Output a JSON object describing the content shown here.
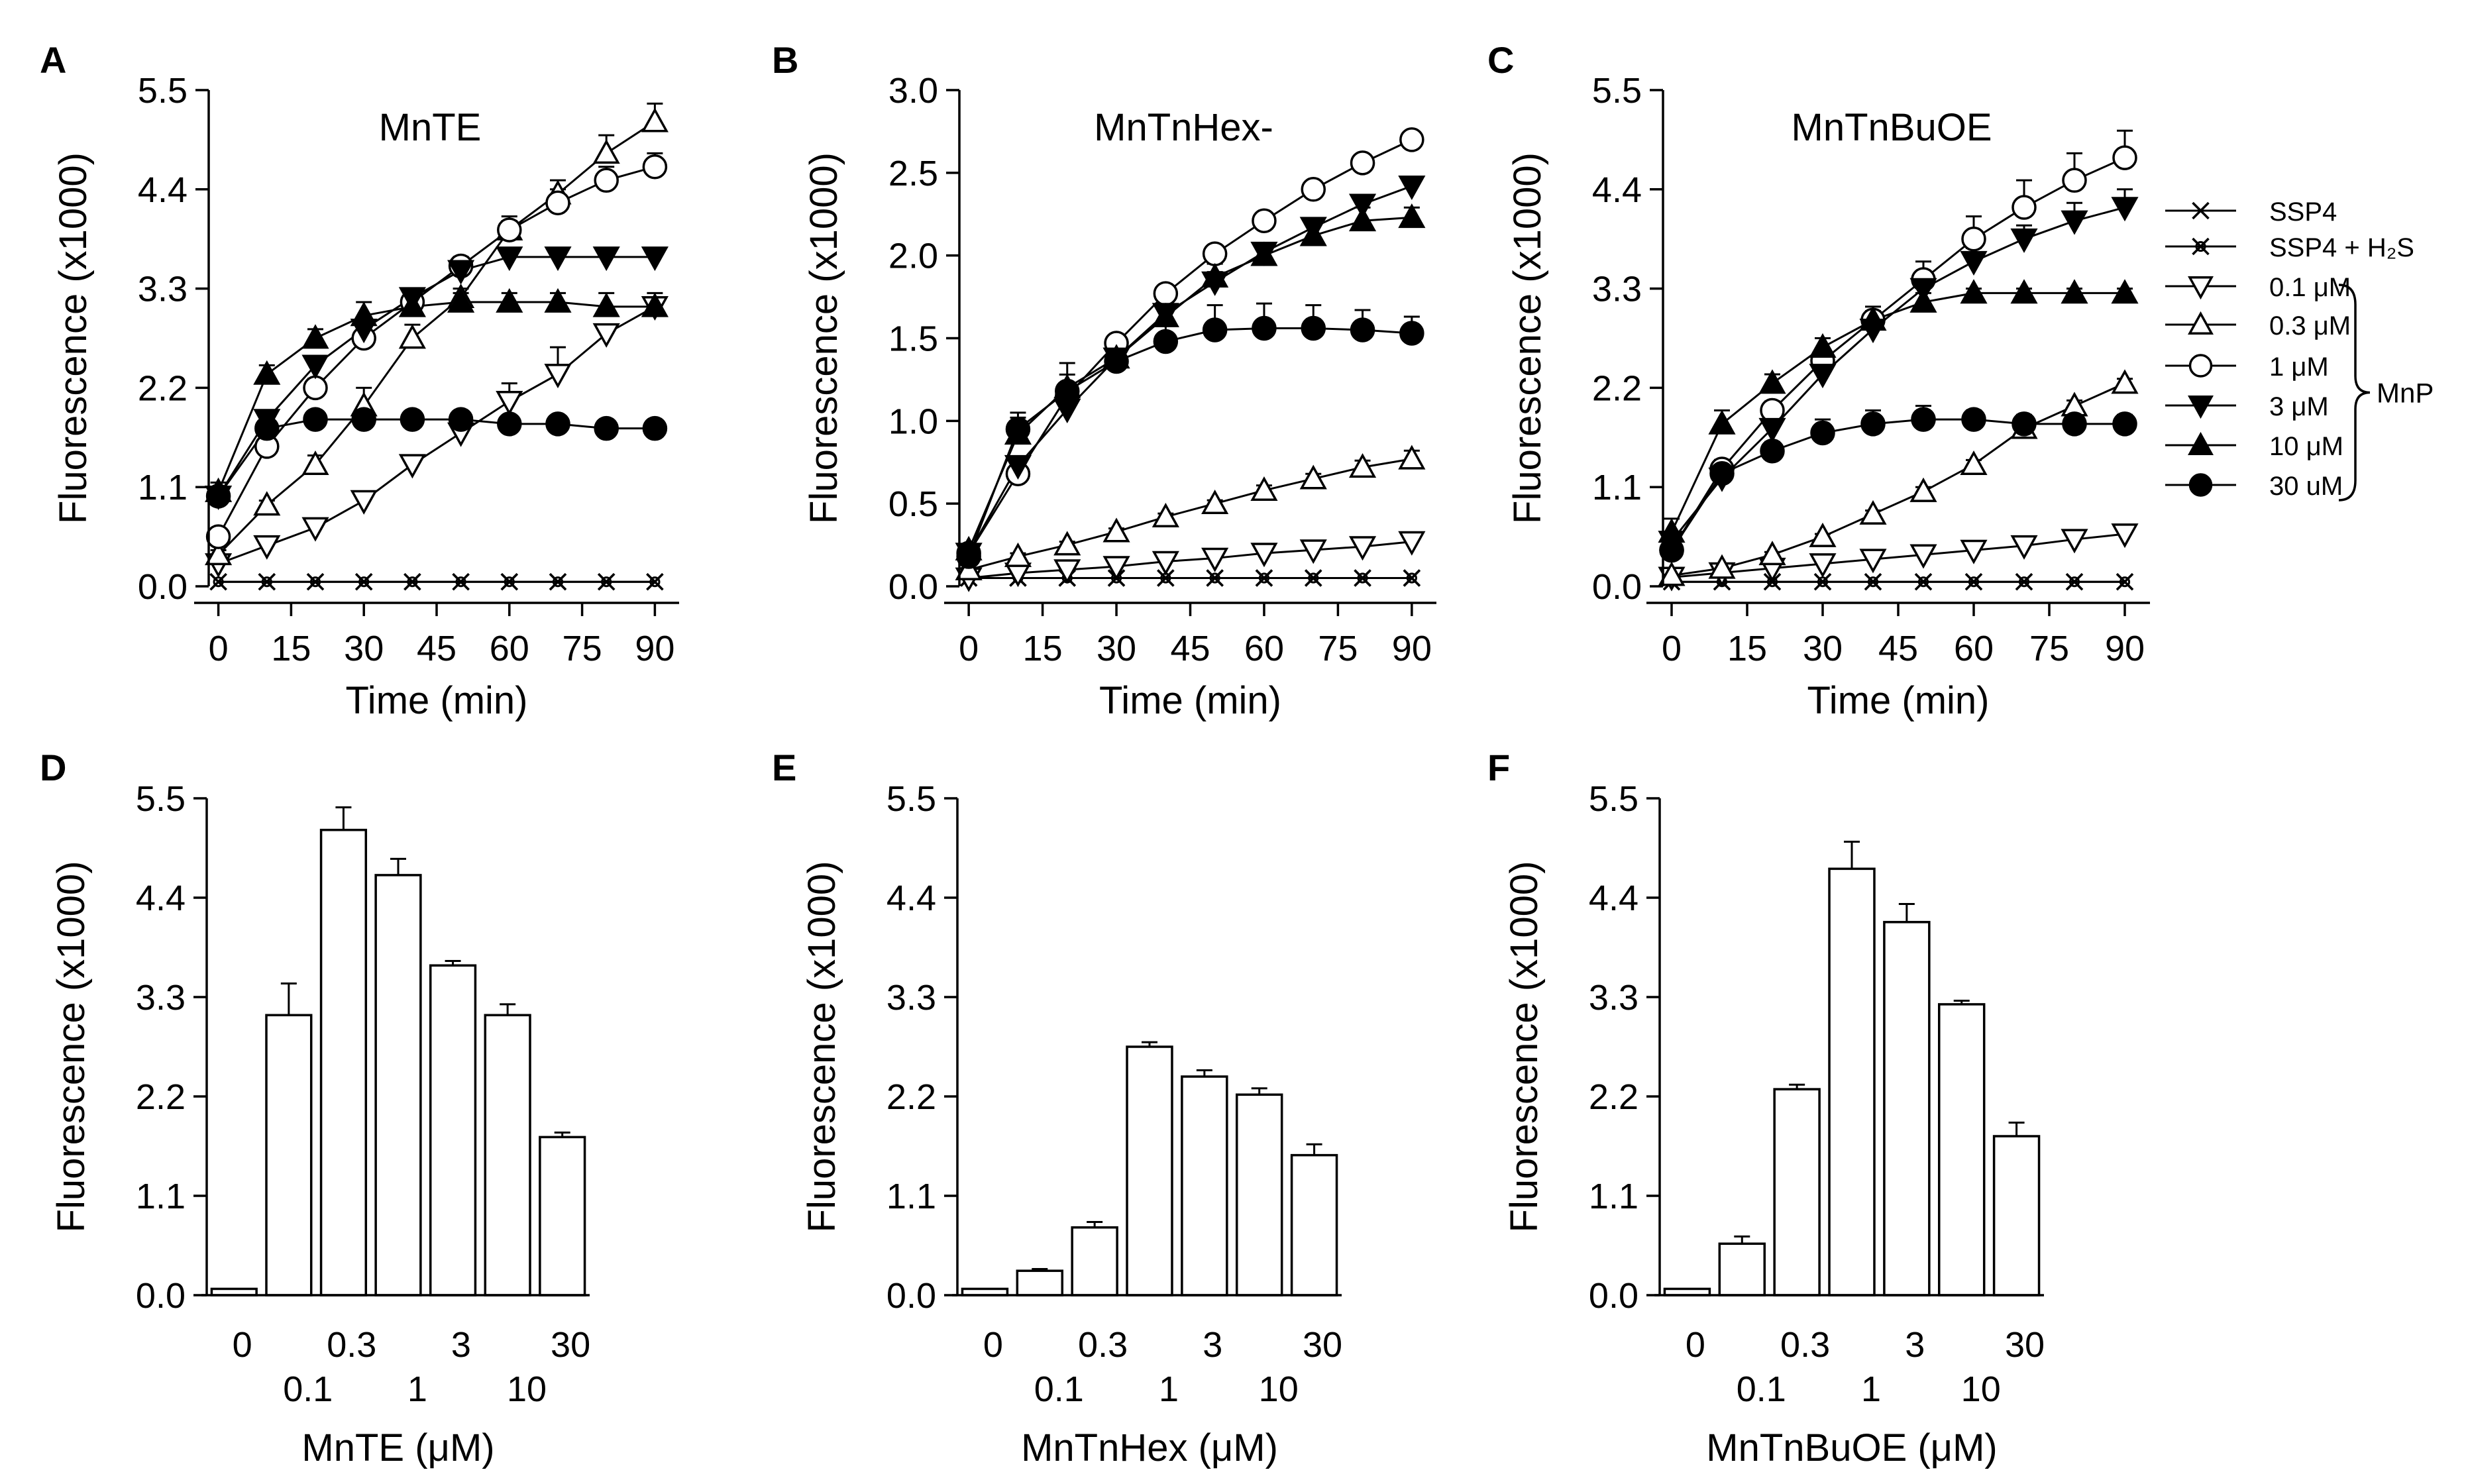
{
  "figure": {
    "background": "#ffffff",
    "line_color": "#000000"
  },
  "legend": {
    "entries": [
      {
        "key": "ssp4",
        "label": "SSP4",
        "marker": "x"
      },
      {
        "key": "ssp4h2s",
        "label": "SSP4 + H₂S",
        "marker": "xcircle"
      },
      {
        "key": "c01",
        "label": "0.1 μM",
        "marker": "tri-down-open"
      },
      {
        "key": "c03",
        "label": "0.3 μM",
        "marker": "tri-up-open"
      },
      {
        "key": "c1",
        "label": "1 μM",
        "marker": "circle-open"
      },
      {
        "key": "c3",
        "label": "3 μM",
        "marker": "tri-down-filled"
      },
      {
        "key": "c10",
        "label": "10 μM",
        "marker": "tri-up-filled"
      },
      {
        "key": "c30",
        "label": "30 uM",
        "marker": "circle-filled"
      }
    ],
    "group_label": "MnP"
  },
  "chart_data": [
    {
      "panel": "A",
      "type": "line",
      "title": "MnTE",
      "xlabel": "Time (min)",
      "ylabel": "Fluorescence (x1000)",
      "xlim": [
        -5,
        95
      ],
      "ylim": [
        0,
        5.5
      ],
      "xticks": [
        "0",
        "15",
        "30",
        "45",
        "60",
        "75",
        "90"
      ],
      "yticks": [
        "0.0",
        "1.1",
        "2.2",
        "3.3",
        "4.4",
        "5.5"
      ],
      "x": [
        0,
        10,
        20,
        30,
        40,
        50,
        60,
        70,
        80,
        90
      ],
      "series": [
        {
          "key": "ssp4",
          "name": "SSP4",
          "values": [
            0.05,
            0.05,
            0.05,
            0.05,
            0.05,
            0.05,
            0.05,
            0.05,
            0.05,
            0.05
          ]
        },
        {
          "key": "ssp4h2s",
          "name": "SSP4 + H2S",
          "values": [
            0.05,
            0.05,
            0.05,
            0.05,
            0.05,
            0.05,
            0.05,
            0.05,
            0.05,
            0.05
          ]
        },
        {
          "key": "c01",
          "name": "0.1 μM",
          "values": [
            0.25,
            0.45,
            0.65,
            0.95,
            1.35,
            1.7,
            2.05,
            2.35,
            2.8,
            3.1
          ],
          "errors": [
            0.02,
            0.05,
            0.05,
            0.1,
            0.1,
            0.1,
            0.2,
            0.3,
            0.1,
            0.1
          ]
        },
        {
          "key": "c03",
          "name": "0.3 μM",
          "values": [
            0.35,
            0.9,
            1.35,
            2.0,
            2.75,
            3.2,
            3.95,
            4.35,
            4.8,
            5.15
          ],
          "errors": [
            0.05,
            0.05,
            0.1,
            0.2,
            0.15,
            0.1,
            0.1,
            0.15,
            0.2,
            0.2
          ]
        },
        {
          "key": "c1",
          "name": "1 μM",
          "values": [
            0.55,
            1.55,
            2.2,
            2.75,
            3.15,
            3.55,
            3.95,
            4.25,
            4.5,
            4.65
          ],
          "errors": [
            0.05,
            0.05,
            0.1,
            0.1,
            0.1,
            0.1,
            0.15,
            0.15,
            0.15,
            0.15
          ]
        },
        {
          "key": "c3",
          "name": "3 μM",
          "values": [
            1.0,
            1.85,
            2.45,
            2.85,
            3.2,
            3.5,
            3.65,
            3.65,
            3.65,
            3.65
          ],
          "errors": [
            0.05,
            0.05,
            0.1,
            0.1,
            0.1,
            0.1,
            0.05,
            0.05,
            0.05,
            0.05
          ]
        },
        {
          "key": "c10",
          "name": "10 μM",
          "values": [
            1.05,
            2.35,
            2.75,
            3.0,
            3.1,
            3.15,
            3.15,
            3.15,
            3.1,
            3.1
          ],
          "errors": [
            0.1,
            0.1,
            0.1,
            0.15,
            0.1,
            0.1,
            0.1,
            0.1,
            0.15,
            0.15
          ]
        },
        {
          "key": "c30",
          "name": "30 uM",
          "values": [
            1.0,
            1.75,
            1.85,
            1.85,
            1.85,
            1.85,
            1.8,
            1.8,
            1.75,
            1.75
          ],
          "errors": [
            0.05,
            0.05,
            0.05,
            0.05,
            0.05,
            0.05,
            0.05,
            0.05,
            0.05,
            0.05
          ]
        }
      ]
    },
    {
      "panel": "B",
      "type": "line",
      "title": "MnTnHex-",
      "xlabel": "Time (min)",
      "ylabel": "Fluorescence (x1000)",
      "xlim": [
        -5,
        95
      ],
      "ylim": [
        0,
        3.0
      ],
      "xticks": [
        "0",
        "15",
        "30",
        "45",
        "60",
        "75",
        "90"
      ],
      "yticks": [
        "0.0",
        "0.5",
        "1.0",
        "1.5",
        "2.0",
        "2.5",
        "3.0"
      ],
      "x": [
        0,
        10,
        20,
        30,
        40,
        50,
        60,
        70,
        80,
        90
      ],
      "series": [
        {
          "key": "ssp4",
          "name": "SSP4",
          "values": [
            0.05,
            0.05,
            0.05,
            0.05,
            0.05,
            0.05,
            0.05,
            0.05,
            0.05,
            0.05
          ]
        },
        {
          "key": "ssp4h2s",
          "name": "SSP4 + H2S",
          "values": [
            0.05,
            0.05,
            0.05,
            0.05,
            0.05,
            0.05,
            0.05,
            0.05,
            0.05,
            0.05
          ]
        },
        {
          "key": "c01",
          "name": "0.1 μM",
          "values": [
            0.05,
            0.08,
            0.1,
            0.12,
            0.15,
            0.17,
            0.2,
            0.22,
            0.24,
            0.27
          ],
          "errors": [
            0.01,
            0.01,
            0.01,
            0.01,
            0.02,
            0.02,
            0.02,
            0.02,
            0.02,
            0.02
          ]
        },
        {
          "key": "c03",
          "name": "0.3 μM",
          "values": [
            0.1,
            0.18,
            0.25,
            0.33,
            0.42,
            0.5,
            0.58,
            0.65,
            0.72,
            0.77
          ],
          "errors": [
            0.01,
            0.02,
            0.02,
            0.02,
            0.02,
            0.02,
            0.03,
            0.03,
            0.04,
            0.05
          ]
        },
        {
          "key": "c1",
          "name": "1 μM",
          "values": [
            0.2,
            0.68,
            1.15,
            1.47,
            1.77,
            2.01,
            2.21,
            2.4,
            2.56,
            2.7
          ],
          "errors": [
            0.02,
            0.03,
            0.05,
            0.05,
            0.03,
            0.03,
            0.03,
            0.03,
            0.03,
            0.03
          ]
        },
        {
          "key": "c3",
          "name": "3 μM",
          "values": [
            0.2,
            0.73,
            1.07,
            1.38,
            1.65,
            1.84,
            2.02,
            2.17,
            2.31,
            2.42
          ],
          "errors": [
            0.02,
            0.03,
            0.05,
            0.05,
            0.05,
            0.06,
            0.05,
            0.05,
            0.05,
            0.05
          ]
        },
        {
          "key": "c10",
          "name": "10 μM",
          "values": [
            0.22,
            0.92,
            1.2,
            1.38,
            1.63,
            1.87,
            2.0,
            2.12,
            2.21,
            2.23
          ],
          "errors": [
            0.02,
            0.1,
            0.15,
            0.08,
            0.1,
            0.08,
            0.06,
            0.08,
            0.08,
            0.06
          ]
        },
        {
          "key": "c30",
          "name": "30 uM",
          "values": [
            0.18,
            0.95,
            1.18,
            1.36,
            1.48,
            1.55,
            1.56,
            1.56,
            1.55,
            1.53
          ],
          "errors": [
            0.02,
            0.1,
            0.1,
            0.1,
            0.12,
            0.15,
            0.15,
            0.14,
            0.12,
            0.1
          ]
        }
      ]
    },
    {
      "panel": "C",
      "type": "line",
      "title": "MnTnBuOE",
      "xlabel": "Time (min)",
      "ylabel": "Fluorescence (x1000)",
      "xlim": [
        -5,
        95
      ],
      "ylim": [
        0,
        5.5
      ],
      "xticks": [
        "0",
        "15",
        "30",
        "45",
        "60",
        "75",
        "90"
      ],
      "yticks": [
        "0.0",
        "1.1",
        "2.2",
        "3.3",
        "4.4",
        "5.5"
      ],
      "x": [
        0,
        10,
        20,
        30,
        40,
        50,
        60,
        70,
        80,
        90
      ],
      "series": [
        {
          "key": "ssp4",
          "name": "SSP4",
          "values": [
            0.05,
            0.05,
            0.05,
            0.05,
            0.05,
            0.05,
            0.05,
            0.05,
            0.05,
            0.05
          ]
        },
        {
          "key": "ssp4h2s",
          "name": "SSP4 + H2S",
          "values": [
            0.05,
            0.05,
            0.05,
            0.05,
            0.05,
            0.05,
            0.05,
            0.05,
            0.05,
            0.05
          ]
        },
        {
          "key": "c01",
          "name": "0.1 μM",
          "values": [
            0.1,
            0.15,
            0.2,
            0.25,
            0.3,
            0.35,
            0.4,
            0.45,
            0.52,
            0.58
          ],
          "errors": [
            0.02,
            0.02,
            0.02,
            0.02,
            0.02,
            0.02,
            0.03,
            0.03,
            0.04,
            0.05
          ]
        },
        {
          "key": "c03",
          "name": "0.3 μM",
          "values": [
            0.12,
            0.2,
            0.35,
            0.55,
            0.8,
            1.05,
            1.35,
            1.75,
            2.0,
            2.25
          ],
          "errors": [
            0.02,
            0.02,
            0.03,
            0.03,
            0.04,
            0.05,
            0.05,
            0.06,
            0.06,
            0.05
          ]
        },
        {
          "key": "c1",
          "name": "1 μM",
          "values": [
            0.4,
            1.3,
            1.95,
            2.5,
            2.95,
            3.4,
            3.85,
            4.2,
            4.5,
            4.75
          ],
          "errors": [
            0.05,
            0.1,
            0.1,
            0.1,
            0.15,
            0.2,
            0.25,
            0.3,
            0.3,
            0.3
          ]
        },
        {
          "key": "c3",
          "name": "3 μM",
          "values": [
            0.5,
            1.2,
            1.75,
            2.35,
            2.85,
            3.3,
            3.6,
            3.85,
            4.05,
            4.2
          ],
          "errors": [
            0.05,
            0.05,
            0.1,
            0.1,
            0.15,
            0.15,
            0.15,
            0.15,
            0.2,
            0.2
          ]
        },
        {
          "key": "c10",
          "name": "10 μM",
          "values": [
            0.6,
            1.8,
            2.25,
            2.65,
            2.95,
            3.15,
            3.25,
            3.25,
            3.25,
            3.25
          ],
          "errors": [
            0.15,
            0.15,
            0.1,
            0.1,
            0.1,
            0.1,
            0.05,
            0.05,
            0.05,
            0.05
          ]
        },
        {
          "key": "c30",
          "name": "30 uM",
          "values": [
            0.4,
            1.25,
            1.5,
            1.7,
            1.8,
            1.85,
            1.85,
            1.8,
            1.8,
            1.8
          ],
          "errors": [
            0.1,
            0.15,
            0.1,
            0.15,
            0.15,
            0.15,
            0.1,
            0.1,
            0.1,
            0.1
          ]
        }
      ]
    },
    {
      "panel": "D",
      "type": "bar",
      "xlabel": "MnTE (μM)",
      "ylabel": "Fluorescence (x1000)",
      "ylim": [
        0,
        5.5
      ],
      "yticks": [
        "0.0",
        "1.1",
        "2.2",
        "3.3",
        "4.4",
        "5.5"
      ],
      "categories": [
        "0",
        "0.1",
        "0.3",
        "1",
        "3",
        "10",
        "30"
      ],
      "values": [
        0.07,
        3.1,
        5.15,
        4.65,
        3.65,
        3.1,
        1.75
      ],
      "errors": [
        0.0,
        0.35,
        0.25,
        0.18,
        0.05,
        0.12,
        0.05
      ]
    },
    {
      "panel": "E",
      "type": "bar",
      "xlabel": "MnTnHex (μM)",
      "ylabel": "Fluorescence (x1000)",
      "ylim": [
        0,
        5.5
      ],
      "yticks": [
        "0.0",
        "1.1",
        "2.2",
        "3.3",
        "4.4",
        "5.5"
      ],
      "categories": [
        "0",
        "0.1",
        "0.3",
        "1",
        "3",
        "10",
        "30"
      ],
      "values": [
        0.07,
        0.27,
        0.75,
        2.75,
        2.42,
        2.22,
        1.55
      ],
      "errors": [
        0.0,
        0.02,
        0.06,
        0.05,
        0.07,
        0.07,
        0.12
      ]
    },
    {
      "panel": "F",
      "type": "bar",
      "xlabel": "MnTnBuOE (μM)",
      "ylabel": "Fluorescence (x1000)",
      "ylim": [
        0,
        5.5
      ],
      "yticks": [
        "0.0",
        "1.1",
        "2.2",
        "3.3",
        "4.4",
        "5.5"
      ],
      "categories": [
        "0",
        "0.1",
        "0.3",
        "1",
        "3",
        "10",
        "30"
      ],
      "values": [
        0.07,
        0.57,
        2.28,
        4.72,
        4.13,
        3.22,
        1.76
      ],
      "errors": [
        0.0,
        0.08,
        0.05,
        0.3,
        0.2,
        0.04,
        0.15
      ]
    }
  ]
}
